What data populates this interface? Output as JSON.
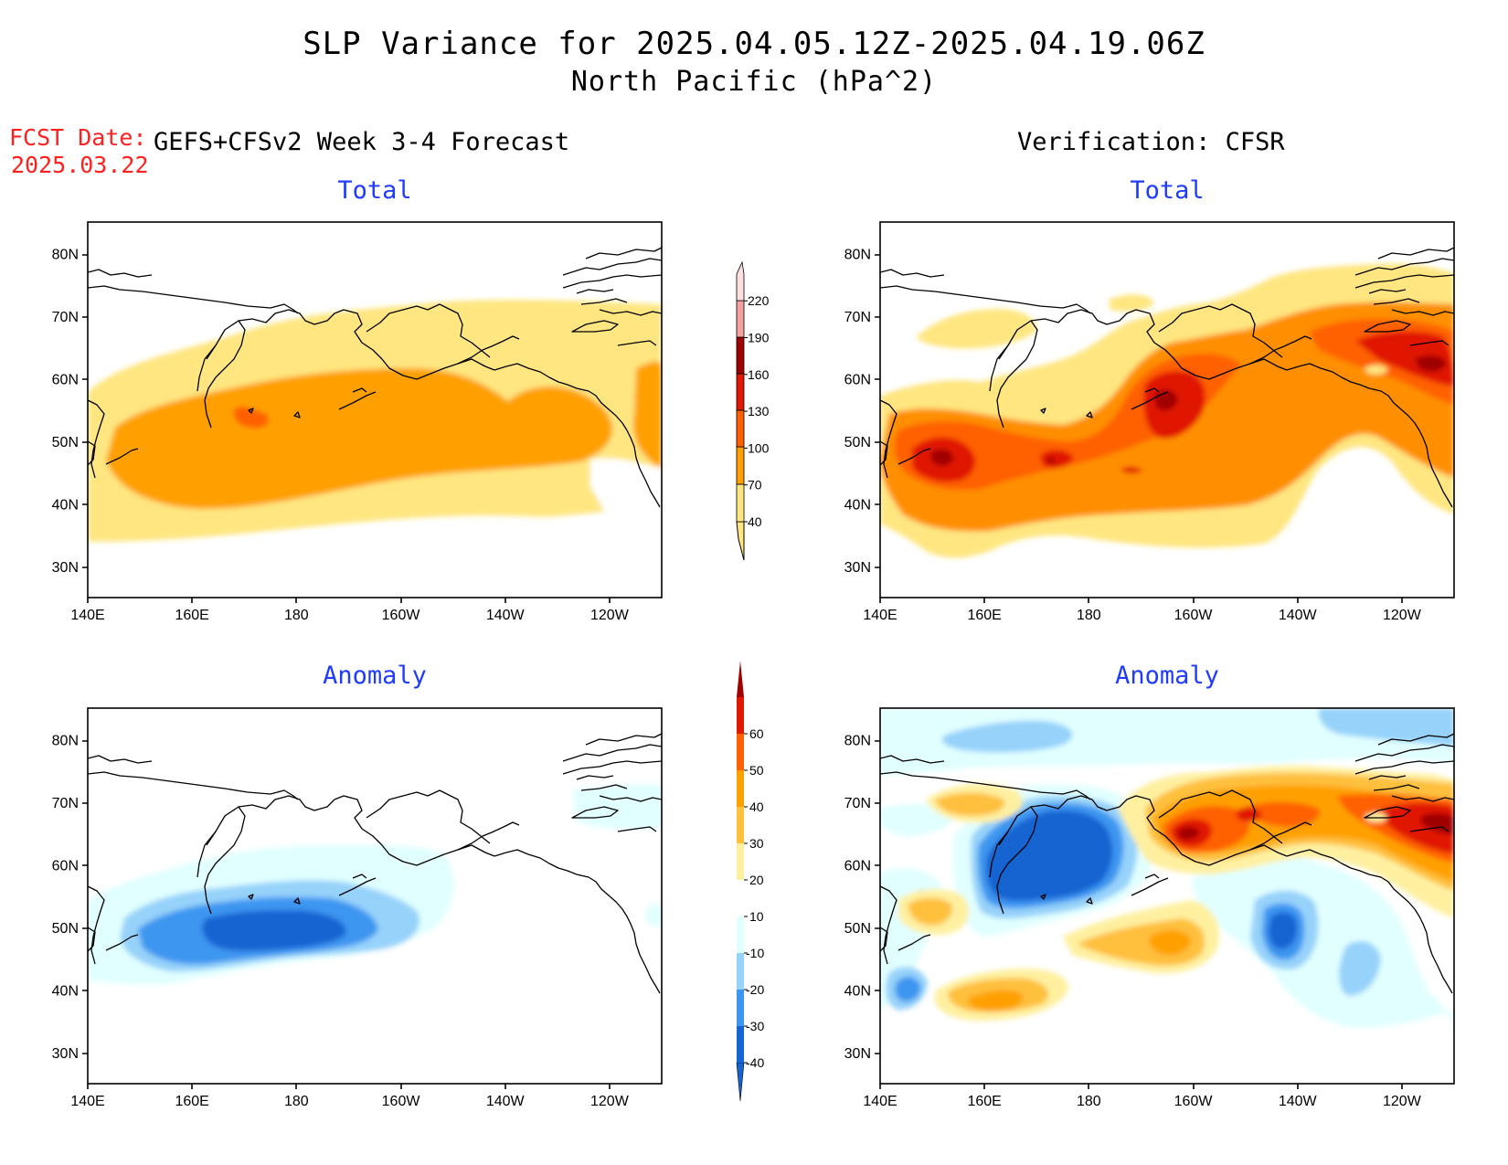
{
  "title_line1": "SLP Variance for 2025.04.05.12Z-2025.04.19.06Z",
  "title_line2": "North Pacific (hPa^2)",
  "fcst_label": "FCST Date:",
  "fcst_date": "2025.03.22",
  "left_header": "GEFS+CFSv2 Week 3-4 Forecast",
  "right_header": "Verification: CFSR",
  "panels": {
    "forecast_total": {
      "title": "Total"
    },
    "verif_total": {
      "title": "Total"
    },
    "forecast_anomaly": {
      "title": "Anomaly"
    },
    "verif_anomaly": {
      "title": "Anomaly"
    }
  },
  "axes": {
    "lat_labels": [
      "80N",
      "70N",
      "60N",
      "50N",
      "40N",
      "30N"
    ],
    "lon_labels": [
      "140E",
      "160E",
      "180",
      "160W",
      "140W",
      "120W"
    ],
    "lat_values": [
      80,
      70,
      60,
      50,
      40,
      30
    ],
    "lon_values": [
      140,
      160,
      180,
      200,
      220,
      240
    ],
    "lat_range": [
      25,
      85
    ],
    "lon_range": [
      140,
      250
    ]
  },
  "colorbar_total": {
    "levels": [
      "40",
      "70",
      "100",
      "130",
      "160",
      "190",
      "220"
    ],
    "colors": [
      "#ffe680",
      "#ffa000",
      "#ff6000",
      "#e01800",
      "#a00000",
      "#f4a0a0",
      "#fce0e0"
    ]
  },
  "colorbar_anomaly": {
    "levels": [
      "-40",
      "-30",
      "-20",
      "-10",
      "10",
      "20",
      "30",
      "40",
      "50",
      "60"
    ],
    "colors": [
      "#1464d2",
      "#3c96f0",
      "#96d2fa",
      "#e1ffff",
      "#ffffff",
      "#fff0a0",
      "#ffc03c",
      "#ffa000",
      "#ff6000",
      "#e01800",
      "#a00000"
    ]
  }
}
